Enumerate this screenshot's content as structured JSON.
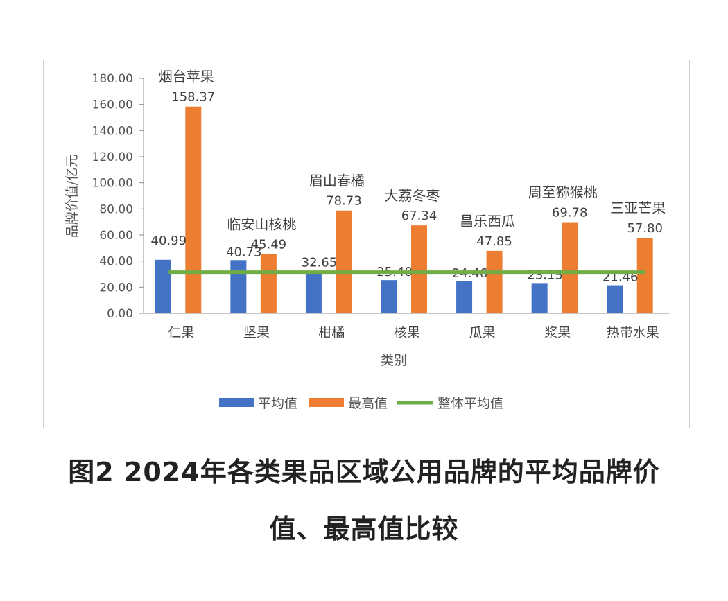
{
  "chart_data": {
    "type": "bar",
    "categories": [
      "仁果",
      "坚果",
      "柑橘",
      "核果",
      "瓜果",
      "浆果",
      "热带水果"
    ],
    "series": [
      {
        "name": "平均值",
        "type": "bar",
        "color": "#4472C4",
        "values": [
          40.99,
          40.73,
          32.65,
          25.4,
          24.46,
          23.15,
          21.46
        ],
        "labels": [
          "40.99",
          "40.73",
          "32.65",
          "25.40",
          "24.46",
          "23.15",
          "21.46"
        ]
      },
      {
        "name": "最高值",
        "type": "bar",
        "color": "#ED7D31",
        "values": [
          158.37,
          45.49,
          78.73,
          67.34,
          47.85,
          69.78,
          57.8
        ],
        "labels": [
          "158.37",
          "45.49",
          "78.73",
          "67.34",
          "47.85",
          "69.78",
          "57.80"
        ]
      },
      {
        "name": "整体平均值",
        "type": "line",
        "color": "#70AD47",
        "value": 31.5
      }
    ],
    "brand_labels": [
      "烟台苹果",
      "临安山核桃",
      "眉山春橘",
      "大荔冬枣",
      "昌乐西瓜",
      "周至猕猴桃",
      "三亚芒果"
    ],
    "ylabel": "品牌价值/亿元",
    "xlabel": "类别",
    "ylim": [
      0,
      180
    ],
    "yticks": [
      "0.00",
      "20.00",
      "40.00",
      "60.00",
      "80.00",
      "100.00",
      "120.00",
      "140.00",
      "160.00",
      "180.00"
    ],
    "legend_position": "bottom",
    "grid": false
  },
  "caption": {
    "line1": "图2 2024年各类果品区域公用品牌的平均品牌价",
    "line2": "值、最高值比较"
  }
}
